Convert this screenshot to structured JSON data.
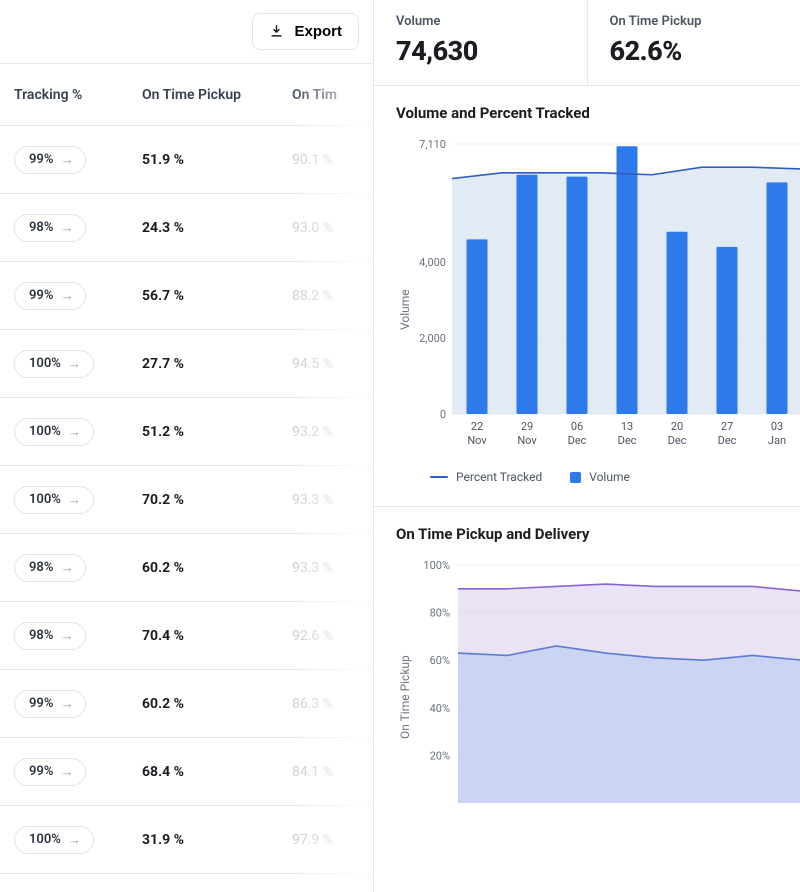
{
  "export_btn": "Export",
  "columns": {
    "tracking": "Tracking %",
    "on_time_pickup": "On Time Pickup",
    "on_time_2": "On Tim"
  },
  "rows": [
    {
      "tracking": "99%",
      "on_time_pickup": "51.9 %",
      "on_time_2": "90.1 %"
    },
    {
      "tracking": "98%",
      "on_time_pickup": "24.3 %",
      "on_time_2": "93.0 %"
    },
    {
      "tracking": "99%",
      "on_time_pickup": "56.7 %",
      "on_time_2": "88.2 %"
    },
    {
      "tracking": "100%",
      "on_time_pickup": "27.7 %",
      "on_time_2": "94.5 %"
    },
    {
      "tracking": "100%",
      "on_time_pickup": "51.2 %",
      "on_time_2": "93.2 %"
    },
    {
      "tracking": "100%",
      "on_time_pickup": "70.2 %",
      "on_time_2": "93.3 %"
    },
    {
      "tracking": "98%",
      "on_time_pickup": "60.2 %",
      "on_time_2": "93.3 %"
    },
    {
      "tracking": "98%",
      "on_time_pickup": "70.4 %",
      "on_time_2": "92.6 %"
    },
    {
      "tracking": "99%",
      "on_time_pickup": "60.2 %",
      "on_time_2": "86.3 %"
    },
    {
      "tracking": "99%",
      "on_time_pickup": "68.4 %",
      "on_time_2": "84.1 %"
    },
    {
      "tracking": "100%",
      "on_time_pickup": "31.9 %",
      "on_time_2": "97.9 %"
    }
  ],
  "kpi": {
    "volume_label": "Volume",
    "volume_value": "74,630",
    "otp_label": "On Time Pickup",
    "otp_value": "62.6%"
  },
  "chart1": {
    "title": "Volume and Percent Tracked",
    "type": "bar+line",
    "ylabel": "Volume",
    "y_max": 7110,
    "y_ticks": [
      0,
      2000,
      4000,
      7110
    ],
    "y_tick_labels": [
      "0",
      "2,000",
      "4,000",
      "7,110"
    ],
    "x": [
      {
        "d": "22",
        "m": "Nov"
      },
      {
        "d": "29",
        "m": "Nov"
      },
      {
        "d": "06",
        "m": "Dec"
      },
      {
        "d": "13",
        "m": "Dec"
      },
      {
        "d": "20",
        "m": "Dec"
      },
      {
        "d": "27",
        "m": "Dec"
      },
      {
        "d": "03",
        "m": "Jan"
      }
    ],
    "bars": [
      4600,
      6300,
      6250,
      7050,
      4800,
      4400,
      6100
    ],
    "line": [
      6200,
      6350,
      6350,
      6350,
      6300,
      6500,
      6500,
      6450
    ],
    "bar_color": "#2f7aea",
    "area_fill": "#dde6f1",
    "line_color": "#2f5fbf",
    "legend": [
      {
        "kind": "line",
        "label": "Percent Tracked"
      },
      {
        "kind": "square",
        "label": "Volume"
      }
    ]
  },
  "chart2": {
    "title": "On Time Pickup and Delivery",
    "type": "area",
    "ylabel": "On Time Pickup",
    "y_ticks": [
      20,
      40,
      60,
      80,
      100
    ],
    "y_tick_labels": [
      "20%",
      "40%",
      "60%",
      "80%",
      "100%"
    ],
    "purple": [
      90,
      90,
      91,
      92,
      91,
      91,
      91,
      89
    ],
    "blue": [
      63,
      62,
      66,
      63,
      61,
      60,
      62,
      60
    ],
    "purple_color": "#8a63d2",
    "purple_fill": "#d8ccef",
    "blue_color": "#5b7bd5",
    "blue_fill": "#c7d5f2"
  }
}
